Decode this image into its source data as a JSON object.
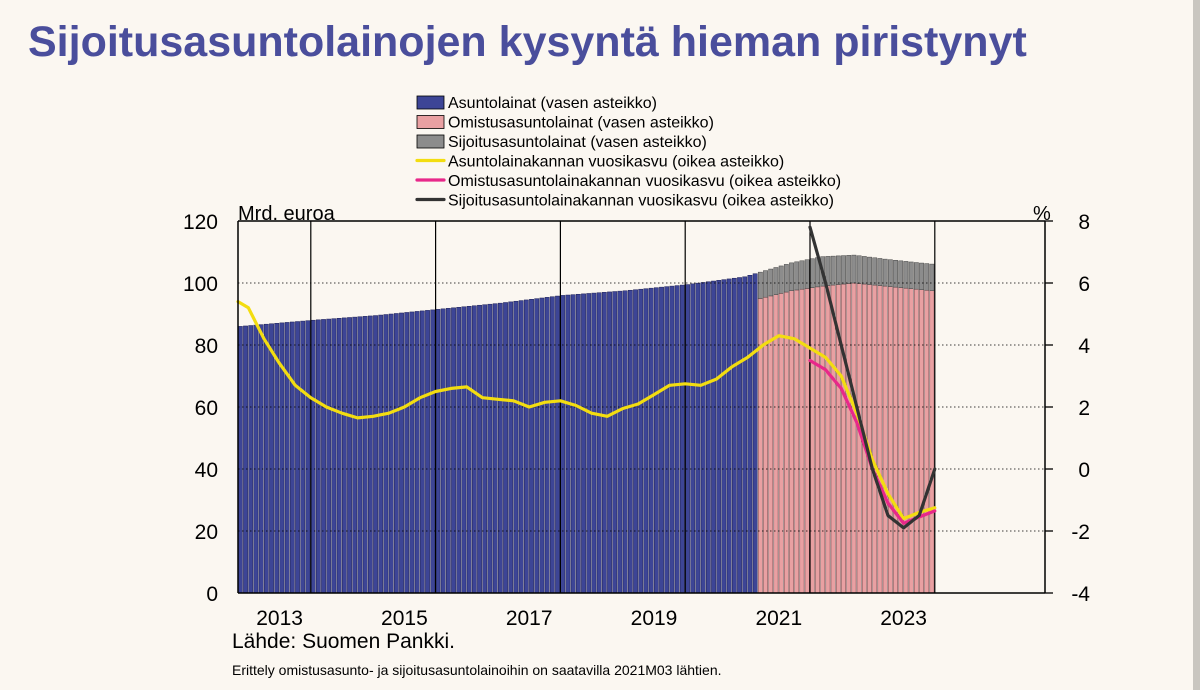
{
  "title": "Sijoitusasuntolainojen kysyntä hieman piristynyt",
  "source": "Lähde: Suomen Pankki.",
  "note": "Erittely omistusasunto- ja sijoitusasuntolainoihin on saatavilla 2021M03 lähtien.",
  "colors": {
    "asuntolainat": "#3d4596",
    "omistus": "#e9a0a2",
    "sijoitus": "#8c8c8c",
    "kasvu_asunto": "#f3dd10",
    "kasvu_omistus": "#e8288a",
    "kasvu_sijoitus": "#333333"
  },
  "chart_data": {
    "type": "bar",
    "left_axis_label": "Mrd. euroa",
    "right_axis_label": "%",
    "ylim_left": [
      0,
      120
    ],
    "yticks_left": [
      "0",
      "20",
      "40",
      "60",
      "80",
      "100",
      "120"
    ],
    "ylim_right": [
      -4,
      8
    ],
    "yticks_right": [
      "-4",
      "-2",
      "0",
      "2",
      "4",
      "6",
      "8"
    ],
    "xticks": [
      "2013",
      "2015",
      "2017",
      "2019",
      "2021",
      "2023"
    ],
    "legend": [
      {
        "label": "Asuntolainat (vasen asteikko)",
        "kind": "bar",
        "color": "#3d4596"
      },
      {
        "label": "Omistusasuntolainat (vasen asteikko)",
        "kind": "bar",
        "color": "#e9a0a2"
      },
      {
        "label": "Sijoitusasuntolainat (vasen asteikko)",
        "kind": "bar",
        "color": "#8c8c8c"
      },
      {
        "label": "Asuntolainakannan vuosikasvu (oikea asteikko)",
        "kind": "line",
        "color": "#f3dd10"
      },
      {
        "label": "Omistusasuntolainakannan vuosikasvu (oikea asteikko)",
        "kind": "line",
        "color": "#e8288a"
      },
      {
        "label": "Sijoitusasuntolainakannan vuosikasvu (oikea asteikko)",
        "kind": "line",
        "color": "#333333"
      }
    ],
    "start_month": "2012-11",
    "split_month": "2021-03",
    "asuntolainat_points": [
      [
        "2012-11",
        86
      ],
      [
        "2014-01",
        88
      ],
      [
        "2015-01",
        89.5
      ],
      [
        "2016-01",
        91.5
      ],
      [
        "2017-01",
        93.5
      ],
      [
        "2018-01",
        96
      ],
      [
        "2019-01",
        97.5
      ],
      [
        "2020-01",
        99.5
      ],
      [
        "2020-12",
        102
      ],
      [
        "2021-02",
        103
      ]
    ],
    "omistus_points": [
      [
        "2021-03",
        95
      ],
      [
        "2021-09",
        97.5
      ],
      [
        "2022-03",
        99
      ],
      [
        "2022-09",
        100
      ],
      [
        "2023-03",
        99
      ],
      [
        "2023-09",
        98
      ],
      [
        "2023-12",
        97.5
      ]
    ],
    "sijoitus_points": [
      [
        "2021-03",
        8.5
      ],
      [
        "2021-09",
        9
      ],
      [
        "2022-03",
        9.5
      ],
      [
        "2022-09",
        9
      ],
      [
        "2023-03",
        8.7
      ],
      [
        "2023-09",
        8.6
      ],
      [
        "2023-12",
        8.6
      ]
    ],
    "kasvu_asunto": [
      [
        "2012-11",
        5.4
      ],
      [
        "2013-01",
        5.2
      ],
      [
        "2013-04",
        4.2
      ],
      [
        "2013-07",
        3.4
      ],
      [
        "2013-10",
        2.7
      ],
      [
        "2014-01",
        2.3
      ],
      [
        "2014-04",
        2.0
      ],
      [
        "2014-07",
        1.8
      ],
      [
        "2014-10",
        1.65
      ],
      [
        "2015-01",
        1.7
      ],
      [
        "2015-04",
        1.8
      ],
      [
        "2015-07",
        2.0
      ],
      [
        "2015-10",
        2.3
      ],
      [
        "2016-01",
        2.5
      ],
      [
        "2016-04",
        2.6
      ],
      [
        "2016-07",
        2.65
      ],
      [
        "2016-10",
        2.3
      ],
      [
        "2017-01",
        2.25
      ],
      [
        "2017-04",
        2.2
      ],
      [
        "2017-07",
        2.0
      ],
      [
        "2017-10",
        2.15
      ],
      [
        "2018-01",
        2.2
      ],
      [
        "2018-04",
        2.05
      ],
      [
        "2018-07",
        1.8
      ],
      [
        "2018-10",
        1.7
      ],
      [
        "2019-01",
        1.95
      ],
      [
        "2019-04",
        2.1
      ],
      [
        "2019-07",
        2.4
      ],
      [
        "2019-10",
        2.7
      ],
      [
        "2020-01",
        2.75
      ],
      [
        "2020-04",
        2.7
      ],
      [
        "2020-07",
        2.9
      ],
      [
        "2020-10",
        3.3
      ],
      [
        "2021-01",
        3.6
      ],
      [
        "2021-04",
        4.0
      ],
      [
        "2021-07",
        4.3
      ],
      [
        "2021-10",
        4.2
      ],
      [
        "2022-01",
        3.9
      ],
      [
        "2022-04",
        3.6
      ],
      [
        "2022-07",
        3.0
      ],
      [
        "2022-10",
        1.8
      ],
      [
        "2023-01",
        0.3
      ],
      [
        "2023-04",
        -0.8
      ],
      [
        "2023-07",
        -1.6
      ],
      [
        "2023-10",
        -1.4
      ],
      [
        "2024-01",
        -1.25
      ]
    ],
    "kasvu_omistus": [
      [
        "2022-01",
        3.5
      ],
      [
        "2022-04",
        3.2
      ],
      [
        "2022-07",
        2.6
      ],
      [
        "2022-10",
        1.5
      ],
      [
        "2023-01",
        0.0
      ],
      [
        "2023-04",
        -1.1
      ],
      [
        "2023-07",
        -1.75
      ],
      [
        "2023-10",
        -1.55
      ],
      [
        "2024-01",
        -1.35
      ]
    ],
    "kasvu_sijoitus": [
      [
        "2022-01",
        7.8
      ],
      [
        "2022-04",
        6.0
      ],
      [
        "2022-07",
        4.0
      ],
      [
        "2022-10",
        2.0
      ],
      [
        "2023-01",
        0.0
      ],
      [
        "2023-04",
        -1.5
      ],
      [
        "2023-07",
        -1.9
      ],
      [
        "2023-10",
        -1.5
      ],
      [
        "2024-01",
        0.0
      ]
    ]
  }
}
